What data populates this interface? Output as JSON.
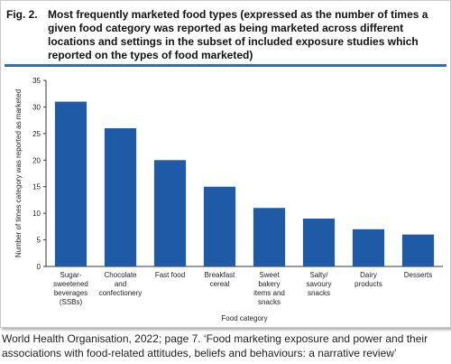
{
  "figure": {
    "number": "Fig. 2.",
    "title": "Most frequently marketed food types (expressed as the number of times a given food category was reported as being marketed across different locations and settings in the subset of included exposure studies which reported on the types of food marketed)"
  },
  "caption": "World Health Organisation, 2022; page 7. ‘Food marketing exposure and power and their associations with food-related attitudes, beliefs and behaviours: a narrative review’",
  "colors": {
    "bar": "#1f5aa6",
    "rule": "#2a6ebd"
  },
  "chart_data": {
    "type": "bar",
    "categories": [
      "Sugar-sweetened beverages (SSBs)",
      "Chocolate and confectionery",
      "Fast food",
      "Breakfast cereal",
      "Sweet bakery items and snacks",
      "Salty/ savoury snacks",
      "Dairy products",
      "Desserts"
    ],
    "category_lines": [
      [
        "Sugar-",
        "sweetened",
        "beverages",
        "(SSBs)"
      ],
      [
        "Chocolate",
        "and",
        "confectionery"
      ],
      [
        "Fast food"
      ],
      [
        "Breakfast",
        "cereal"
      ],
      [
        "Sweet",
        "bakery",
        "items and",
        "snacks"
      ],
      [
        "Salty/",
        "savoury",
        "snacks"
      ],
      [
        "Dairy",
        "products"
      ],
      [
        "Desserts"
      ]
    ],
    "values": [
      31,
      26,
      20,
      15,
      11,
      9,
      7,
      6
    ],
    "xlabel": "Food category",
    "ylabel": "Number of times category was reported as marketed",
    "ylim": [
      0,
      35
    ],
    "yticks": [
      0,
      5,
      10,
      15,
      20,
      25,
      30,
      35
    ],
    "grid": false,
    "legend": "none"
  }
}
